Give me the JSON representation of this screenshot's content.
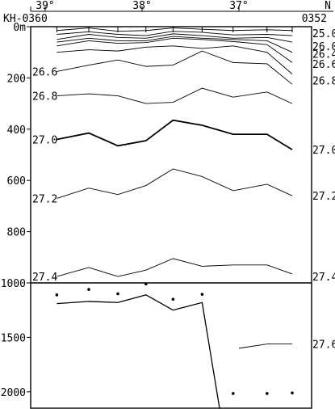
{
  "chart_data": {
    "type": "line",
    "station_range": {
      "left": "KH-0360",
      "right": "0352"
    },
    "xaxis": {
      "ticks": [
        "39°",
        "38°",
        "37°",
        "N"
      ],
      "lat_range": [
        39.15,
        36.25
      ],
      "tick_values": [
        39,
        38,
        37
      ]
    },
    "yaxis_upper": {
      "ticks": [
        "0m",
        "200",
        "400",
        "600",
        "800",
        "1000"
      ],
      "range": [
        0,
        1000
      ]
    },
    "yaxis_lower": {
      "ticks": [
        "1500",
        "2000"
      ],
      "range": [
        1000,
        2150
      ]
    },
    "stations_lat": [
      38.88,
      38.55,
      38.25,
      37.96,
      37.68,
      37.38,
      37.06,
      36.71,
      36.45
    ],
    "station_markers_upper": [
      38.88,
      38.55,
      38.25,
      37.96,
      37.68,
      37.38,
      37.06,
      36.71,
      36.45
    ],
    "bottom_sample_points": [
      {
        "lat": 38.88,
        "depth": 1110
      },
      {
        "lat": 38.55,
        "depth": 1060
      },
      {
        "lat": 38.25,
        "depth": 1100
      },
      {
        "lat": 37.96,
        "depth": 1010
      },
      {
        "lat": 37.68,
        "depth": 1150
      },
      {
        "lat": 37.38,
        "depth": 1105
      },
      {
        "lat": 37.06,
        "depth": 2015
      },
      {
        "lat": 36.71,
        "depth": 2015
      },
      {
        "lat": 36.45,
        "depth": 2010
      }
    ],
    "bottom_profile": {
      "lats": [
        38.88,
        38.55,
        38.25,
        37.96,
        37.68,
        37.38,
        37.2
      ],
      "depths": [
        1190,
        1170,
        1180,
        1110,
        1250,
        1180,
        2150
      ]
    },
    "series": [
      {
        "name": "25.0",
        "lat": [
          38.88,
          38.55,
          38.25,
          37.96,
          37.68,
          37.38,
          37.06,
          36.71,
          36.45
        ],
        "depth": [
          15,
          5,
          18,
          15,
          5,
          10,
          15,
          12,
          15
        ]
      },
      {
        "name": "",
        "lat": [
          38.88,
          38.55,
          38.25,
          37.96,
          37.68,
          37.38,
          37.06,
          36.71,
          36.45
        ],
        "depth": [
          30,
          20,
          30,
          35,
          18,
          22,
          32,
          30,
          35
        ]
      },
      {
        "name": "",
        "lat": [
          38.88,
          38.55,
          38.25,
          37.96,
          37.68,
          37.38,
          37.06,
          36.71,
          36.45
        ],
        "depth": [
          50,
          30,
          42,
          45,
          28,
          35,
          45,
          42,
          60
        ]
      },
      {
        "name": "26.0",
        "lat": [
          38.88,
          38.55,
          38.25,
          37.96,
          37.68,
          37.38,
          37.06,
          36.71,
          36.45
        ],
        "depth": [
          60,
          45,
          55,
          55,
          38,
          45,
          50,
          55,
          100
        ]
      },
      {
        "name": "",
        "lat": [
          38.88,
          38.55,
          38.25,
          37.96,
          37.68,
          37.38,
          37.06,
          36.71,
          36.45
        ],
        "depth": [
          75,
          55,
          65,
          62,
          45,
          50,
          58,
          70,
          140
        ]
      },
      {
        "name": "26.4",
        "lat": [
          38.88,
          38.55,
          38.25,
          37.96,
          37.68,
          37.38,
          37.06,
          36.71,
          36.45
        ],
        "depth": [
          100,
          90,
          95,
          80,
          75,
          85,
          75,
          100,
          185
        ]
      },
      {
        "name": "26.6",
        "lat": [
          38.88,
          38.55,
          38.25,
          37.96,
          37.68,
          37.38,
          37.06,
          36.71,
          36.45
        ],
        "depth": [
          175,
          150,
          130,
          155,
          150,
          95,
          140,
          145,
          225
        ]
      },
      {
        "name": "26.8",
        "lat": [
          38.88,
          38.55,
          38.25,
          37.96,
          37.68,
          37.38,
          37.06,
          36.71,
          36.45
        ],
        "depth": [
          270,
          262,
          270,
          300,
          295,
          240,
          275,
          255,
          300
        ]
      },
      {
        "name": "27.0",
        "lat": [
          38.88,
          38.55,
          38.25,
          37.96,
          37.68,
          37.38,
          37.06,
          36.71,
          36.45
        ],
        "depth": [
          440,
          415,
          465,
          445,
          365,
          385,
          420,
          420,
          480
        ]
      },
      {
        "name": "27.2",
        "lat": [
          38.88,
          38.55,
          38.25,
          37.96,
          37.68,
          37.38,
          37.06,
          36.71,
          36.45
        ],
        "depth": [
          670,
          630,
          655,
          620,
          555,
          585,
          640,
          615,
          660
        ]
      },
      {
        "name": "27.4",
        "lat": [
          38.88,
          38.55,
          38.25,
          37.96,
          37.68,
          37.38,
          37.06,
          36.71,
          36.45
        ],
        "depth": [
          975,
          940,
          975,
          950,
          905,
          935,
          930,
          930,
          965
        ]
      },
      {
        "name": "27.6",
        "lat": [
          37.0,
          36.7,
          36.45
        ],
        "depth": [
          1600,
          1560,
          1560
        ]
      }
    ],
    "labels": {
      "left": [
        "26.6",
        "26.8",
        "27.0",
        "27.2",
        "27.4"
      ],
      "right": [
        "25.0",
        "26.0",
        "26.4",
        "26.6",
        "26.8",
        "27.0",
        "27.2",
        "27.4",
        "27.6"
      ]
    },
    "bold_series": [
      "27.0"
    ],
    "grid": false
  }
}
